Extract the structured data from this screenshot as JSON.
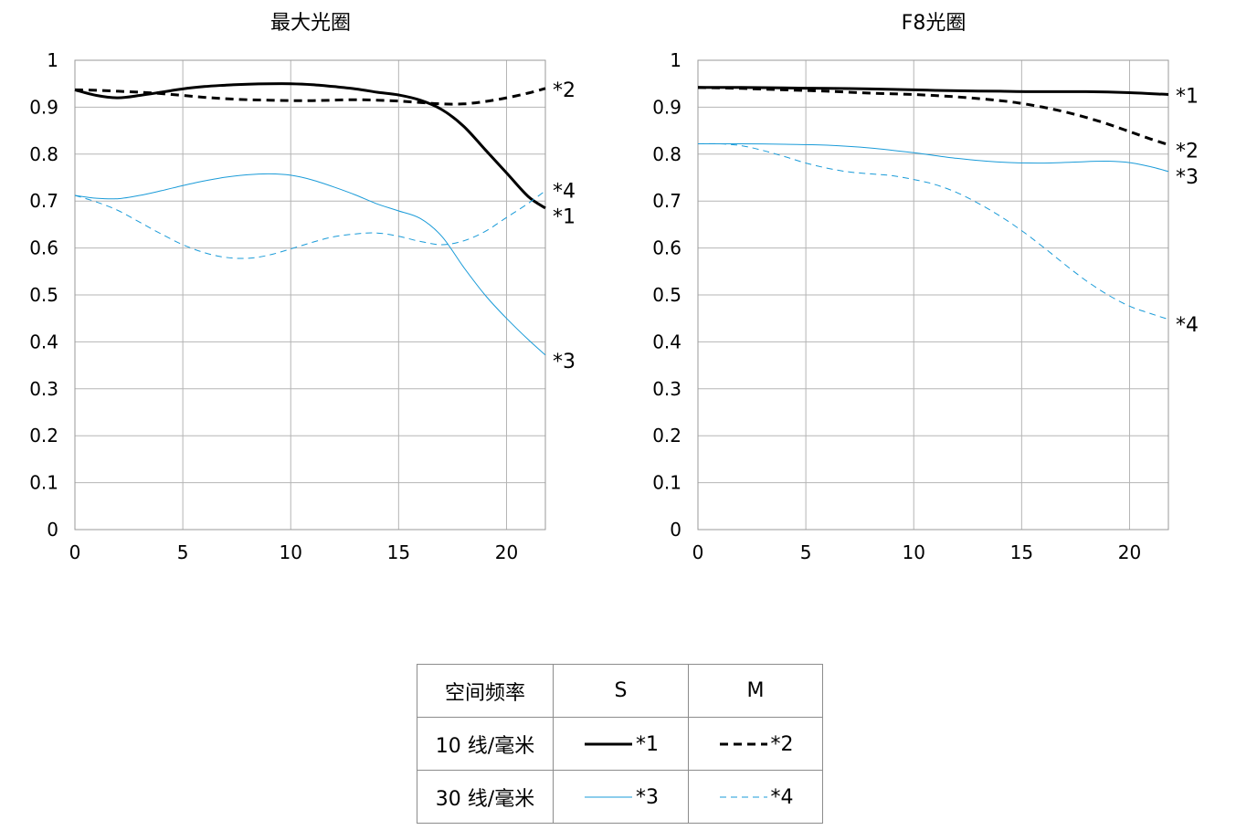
{
  "chart_data": [
    {
      "type": "line",
      "title": "最大光圈",
      "xlim": [
        0,
        21.8
      ],
      "ylim": [
        0,
        1
      ],
      "xticks": [
        0,
        5,
        10,
        15,
        20
      ],
      "yticks": [
        0,
        0.1,
        0.2,
        0.3,
        0.4,
        0.5,
        0.6,
        0.7,
        0.8,
        0.9,
        1
      ],
      "ytick_labels": [
        "0",
        "0.1",
        "0.2",
        "0.3",
        "0.4",
        "0.5",
        "0.6",
        "0.7",
        "0.8",
        "0.9",
        "1"
      ],
      "grid": true,
      "series": [
        {
          "name": "*1",
          "style": "thick-solid",
          "color": "#000000",
          "x": [
            0,
            1,
            2,
            3,
            4,
            5,
            6,
            7,
            8,
            9,
            10,
            11,
            12,
            13,
            14,
            15,
            16,
            17,
            18,
            19,
            20,
            21,
            21.8
          ],
          "y": [
            0.937,
            0.925,
            0.92,
            0.925,
            0.932,
            0.939,
            0.944,
            0.947,
            0.949,
            0.95,
            0.95,
            0.948,
            0.944,
            0.939,
            0.932,
            0.926,
            0.915,
            0.895,
            0.86,
            0.81,
            0.76,
            0.71,
            0.685
          ]
        },
        {
          "name": "*2",
          "style": "thick-dashed",
          "color": "#000000",
          "x": [
            0,
            1,
            2,
            3,
            4,
            5,
            6,
            7,
            8,
            9,
            10,
            11,
            12,
            13,
            14,
            15,
            16,
            17,
            18,
            19,
            20,
            21,
            21.8
          ],
          "y": [
            0.937,
            0.936,
            0.934,
            0.932,
            0.929,
            0.925,
            0.921,
            0.918,
            0.916,
            0.915,
            0.914,
            0.914,
            0.915,
            0.916,
            0.915,
            0.913,
            0.91,
            0.907,
            0.907,
            0.912,
            0.92,
            0.93,
            0.94
          ]
        },
        {
          "name": "*3",
          "style": "thin-solid",
          "color": "#1a9bd8",
          "x": [
            0,
            1,
            2,
            3,
            4,
            5,
            6,
            7,
            8,
            9,
            10,
            11,
            12,
            13,
            14,
            15,
            16,
            17,
            18,
            19,
            20,
            21,
            21.8
          ],
          "y": [
            0.712,
            0.706,
            0.705,
            0.712,
            0.722,
            0.733,
            0.743,
            0.751,
            0.756,
            0.758,
            0.755,
            0.745,
            0.73,
            0.713,
            0.694,
            0.679,
            0.663,
            0.625,
            0.56,
            0.5,
            0.45,
            0.405,
            0.372
          ]
        },
        {
          "name": "*4",
          "style": "thin-dashed",
          "color": "#1a9bd8",
          "x": [
            0,
            1,
            2,
            3,
            4,
            5,
            6,
            7,
            8,
            9,
            10,
            11,
            12,
            13,
            14,
            15,
            16,
            17,
            18,
            19,
            20,
            21,
            21.8
          ],
          "y": [
            0.712,
            0.698,
            0.68,
            0.655,
            0.63,
            0.607,
            0.59,
            0.58,
            0.578,
            0.585,
            0.598,
            0.612,
            0.624,
            0.63,
            0.632,
            0.625,
            0.614,
            0.607,
            0.615,
            0.635,
            0.665,
            0.695,
            0.722
          ]
        }
      ],
      "end_labels": [
        {
          "text": "*2",
          "y": 0.94
        },
        {
          "text": "*4",
          "y": 0.725
        },
        {
          "text": "*1",
          "y": 0.67
        },
        {
          "text": "*3",
          "y": 0.362
        }
      ]
    },
    {
      "type": "line",
      "title": "F8光圈",
      "xlim": [
        0,
        21.8
      ],
      "ylim": [
        0,
        1
      ],
      "xticks": [
        0,
        5,
        10,
        15,
        20
      ],
      "yticks": [
        0,
        0.1,
        0.2,
        0.3,
        0.4,
        0.5,
        0.6,
        0.7,
        0.8,
        0.9,
        1
      ],
      "ytick_labels": [
        "0",
        "0.1",
        "0.2",
        "0.3",
        "0.4",
        "0.5",
        "0.6",
        "0.7",
        "0.8",
        "0.9",
        "1"
      ],
      "grid": true,
      "series": [
        {
          "name": "*1",
          "style": "thick-solid",
          "color": "#000000",
          "x": [
            0,
            2,
            4,
            6,
            8,
            10,
            12,
            14,
            16,
            18,
            20,
            21.8
          ],
          "y": [
            0.942,
            0.942,
            0.941,
            0.94,
            0.939,
            0.937,
            0.935,
            0.934,
            0.933,
            0.933,
            0.931,
            0.927
          ]
        },
        {
          "name": "*2",
          "style": "thick-dashed",
          "color": "#000000",
          "x": [
            0,
            2,
            4,
            6,
            8,
            10,
            12,
            14,
            15,
            16,
            17,
            18,
            19,
            20,
            21,
            21.8
          ],
          "y": [
            0.942,
            0.94,
            0.937,
            0.934,
            0.93,
            0.927,
            0.922,
            0.914,
            0.908,
            0.9,
            0.89,
            0.878,
            0.864,
            0.848,
            0.832,
            0.82
          ]
        },
        {
          "name": "*3",
          "style": "thin-solid",
          "color": "#1a9bd8",
          "x": [
            0,
            2,
            4,
            6,
            8,
            10,
            12,
            14,
            16,
            18,
            19,
            20,
            21,
            21.8
          ],
          "y": [
            0.822,
            0.822,
            0.821,
            0.819,
            0.813,
            0.803,
            0.791,
            0.783,
            0.781,
            0.784,
            0.785,
            0.782,
            0.773,
            0.763
          ]
        },
        {
          "name": "*4",
          "style": "thin-dashed",
          "color": "#1a9bd8",
          "x": [
            0,
            1,
            2,
            3,
            4,
            5,
            6,
            7,
            8,
            9,
            10,
            11,
            12,
            13,
            14,
            15,
            16,
            17,
            18,
            19,
            20,
            21,
            21.8
          ],
          "y": [
            0.822,
            0.822,
            0.818,
            0.808,
            0.795,
            0.781,
            0.77,
            0.762,
            0.758,
            0.754,
            0.746,
            0.735,
            0.718,
            0.695,
            0.668,
            0.637,
            0.602,
            0.565,
            0.53,
            0.5,
            0.476,
            0.46,
            0.448
          ]
        }
      ],
      "end_labels": [
        {
          "text": "*1",
          "y": 0.927
        },
        {
          "text": "*2",
          "y": 0.81
        },
        {
          "text": "*3",
          "y": 0.755
        },
        {
          "text": "*4",
          "y": 0.44
        }
      ]
    }
  ],
  "legend": {
    "header": [
      "空间频率",
      "S",
      "M"
    ],
    "rows": [
      {
        "label": "10 线/毫米",
        "s_series": "*1",
        "m_series": "*2"
      },
      {
        "label": "30 线/毫米",
        "s_series": "*3",
        "m_series": "*4"
      }
    ]
  }
}
